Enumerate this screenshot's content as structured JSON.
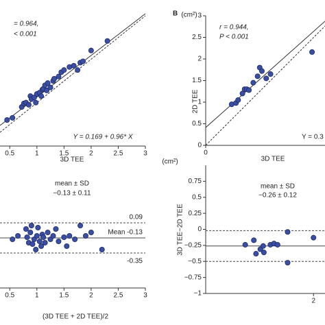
{
  "chart_data": [
    {
      "type": "scatter",
      "color": "#3a4ea3",
      "annotations": [
        "= 0.964,",
        "< 0.001",
        "Y = 0.169 + 0.96* X"
      ],
      "xlabel": "3D TEE",
      "unit": "(cm²)",
      "x": [
        0.45,
        0.55,
        0.72,
        0.76,
        0.8,
        0.85,
        0.88,
        0.9,
        0.95,
        0.98,
        1.0,
        1.05,
        1.08,
        1.1,
        1.12,
        1.15,
        1.18,
        1.2,
        1.25,
        1.3,
        1.32,
        1.4,
        1.45,
        1.5,
        1.6,
        1.68,
        1.75,
        1.8,
        1.85,
        2.0,
        2.3
      ],
      "y": [
        0.6,
        0.65,
        0.9,
        0.98,
        1.0,
        0.95,
        1.15,
        1.08,
        1.12,
        1.0,
        1.2,
        1.23,
        1.15,
        1.3,
        1.32,
        1.4,
        1.28,
        1.45,
        1.35,
        1.5,
        1.55,
        1.6,
        1.7,
        1.75,
        1.82,
        1.85,
        1.75,
        1.92,
        1.95,
        2.2,
        2.42
      ],
      "xlim": [
        0.32,
        3
      ],
      "ylim": [
        0,
        3.3
      ],
      "xticks": [
        0.5,
        1,
        1.5,
        2,
        2.5,
        3
      ]
    },
    {
      "type": "scatter",
      "color": "#3a4ea3",
      "panel_label": "B",
      "annotations": [
        "r = 0.944,",
        "P < 0.001",
        "Y = 0.3"
      ],
      "xlabel": "3D TEE",
      "ylabel": "2D TEE",
      "unit": "(cm²)",
      "x": [
        0.6,
        0.7,
        0.75,
        0.85,
        0.9,
        0.95,
        1.0,
        1.1,
        1.2,
        1.25,
        1.3,
        1.4,
        1.5,
        2.46
      ],
      "y": [
        0.95,
        0.98,
        1.05,
        1.2,
        1.3,
        1.3,
        1.28,
        1.45,
        1.6,
        1.8,
        1.72,
        1.55,
        1.65,
        2.16
      ],
      "xlim": [
        0,
        2.76
      ],
      "ylim": [
        0,
        3
      ],
      "xticks": [
        0
      ],
      "yticks": [
        0,
        0.5,
        1,
        1.5,
        2,
        2.5,
        3
      ]
    },
    {
      "type": "scatter",
      "color": "#3a4ea3",
      "annotations": [
        "mean ± SD",
        "−0.13 ± 0.11"
      ],
      "xlabel": "(3D TEE + 2D TEE)/2",
      "x": [
        0.55,
        0.65,
        0.8,
        0.82,
        0.85,
        0.88,
        0.9,
        0.92,
        0.95,
        0.98,
        1.0,
        1.02,
        1.05,
        1.08,
        1.1,
        1.12,
        1.15,
        1.2,
        1.25,
        1.3,
        1.35,
        1.4,
        1.5,
        1.55,
        1.6,
        1.7,
        1.8,
        1.9,
        2.0,
        2.2
      ],
      "y": [
        -0.15,
        -0.1,
        0.0,
        -0.12,
        -0.2,
        -0.05,
        0.05,
        -0.22,
        -0.15,
        -0.3,
        -0.1,
        0.02,
        -0.18,
        -0.25,
        -0.08,
        -0.12,
        -0.2,
        -0.05,
        -0.15,
        -0.1,
        0.0,
        -0.18,
        -0.12,
        -0.25,
        -0.1,
        -0.15,
        0.05,
        -0.1,
        -0.05,
        -0.3
      ],
      "hlines": [
        {
          "value": 0.09,
          "label": "0.09",
          "style": "dashed"
        },
        {
          "value": -0.13,
          "label": "Mean -0.13",
          "style": "solid"
        },
        {
          "value": -0.35,
          "label": "-0.35",
          "style": "dashed"
        }
      ],
      "xlim": [
        0.32,
        3
      ],
      "ylim": [
        -0.86,
        0.94
      ],
      "xticks": [
        0.5,
        1,
        1.5,
        2,
        2.5,
        3
      ]
    },
    {
      "type": "scatter",
      "color": "#3a4ea3",
      "annotations": [
        "mean ± SD",
        "−0.26 ± 0.12"
      ],
      "ylabel": "3D TEE−2D TEE",
      "x": [
        1.05,
        1.17,
        1.2,
        1.26,
        1.3,
        1.31,
        1.4,
        1.45,
        1.5,
        1.64,
        1.64,
        2.0
      ],
      "y": [
        -0.24,
        -0.17,
        -0.38,
        -0.31,
        -0.26,
        -0.36,
        -0.24,
        -0.22,
        -0.24,
        -0.04,
        -0.52,
        -0.13
      ],
      "hlines": [
        {
          "value": -0.02,
          "style": "dashed"
        },
        {
          "value": -0.26,
          "style": "solid"
        },
        {
          "value": -0.5,
          "style": "dashed"
        }
      ],
      "xlim": [
        0.5,
        2.16
      ],
      "ylim": [
        -1,
        1
      ],
      "xticks": [
        2
      ],
      "yticks": [
        {
          "value": 0.75,
          "label": "0.75"
        },
        {
          "value": 0.5,
          "label": "0.5"
        },
        {
          "value": 0.25,
          "label": "0.25"
        },
        0,
        {
          "value": -0.25,
          "label": "−0.25"
        },
        {
          "value": -0.5,
          "label": "−0.5"
        },
        {
          "value": -0.75,
          "label": "−0.75"
        },
        {
          "value": -1,
          "label": "−1"
        }
      ]
    }
  ]
}
